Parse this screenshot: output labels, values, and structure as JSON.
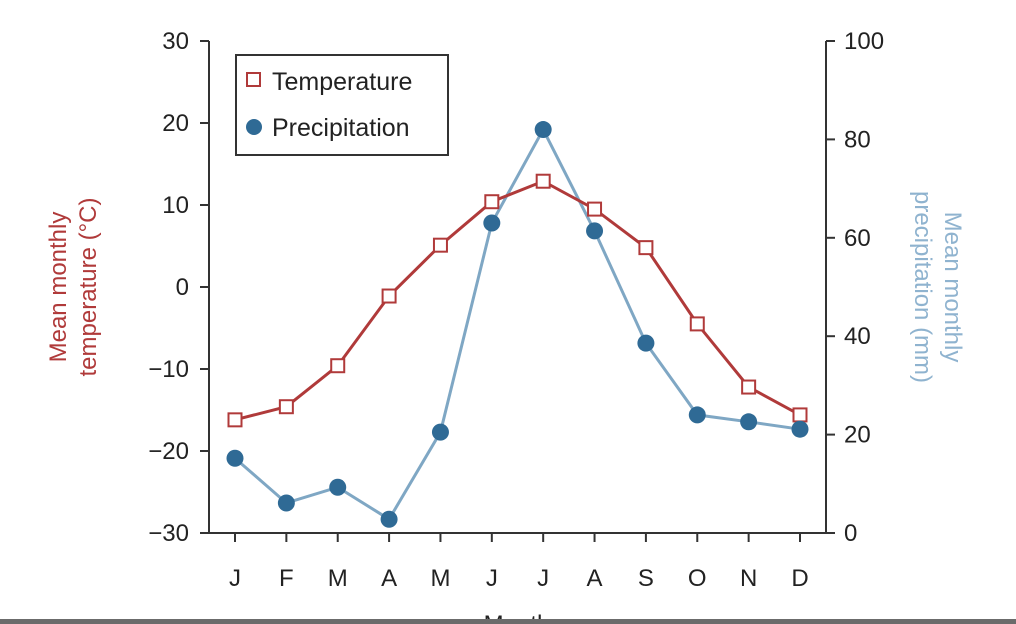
{
  "chart_data": {
    "type": "line",
    "categories": [
      "J",
      "F",
      "M",
      "A",
      "M",
      "J",
      "J",
      "A",
      "S",
      "O",
      "N",
      "D"
    ],
    "xlabel": "Month",
    "ylabel_left": "Mean monthly temperature (°C)",
    "ylabel_right": "Mean monthly precipitation (mm)",
    "ylim_left": [
      -30,
      30
    ],
    "yticks_left": [
      30,
      20,
      10,
      0,
      -10,
      -20,
      -30
    ],
    "ylim_right": [
      0,
      100
    ],
    "yticks_right": [
      100,
      80,
      60,
      40,
      20,
      0
    ],
    "grid": false,
    "legend_position": "top-left",
    "series": [
      {
        "name": "Temperature",
        "axis": "left",
        "marker": "open-square",
        "color": "#b03a3a",
        "values": [
          -16.2,
          -14.6,
          -9.6,
          -1.1,
          5.1,
          10.4,
          12.9,
          9.5,
          4.8,
          -4.5,
          -12.2,
          -15.6
        ]
      },
      {
        "name": "Precipitation",
        "axis": "right",
        "marker": "filled-circle",
        "color": "#2f6a95",
        "line_color": "#7fa7c4",
        "values": [
          15.2,
          6.1,
          9.3,
          2.8,
          20.5,
          63,
          82,
          61.4,
          38.6,
          24,
          22.6,
          21.1
        ]
      }
    ],
    "left_label_color": "#b03a3a",
    "right_label_color": "#8fb3cf"
  }
}
